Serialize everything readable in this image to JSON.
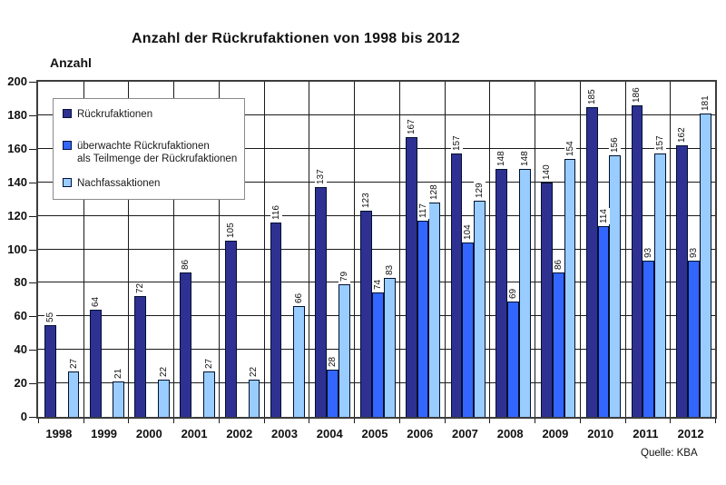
{
  "title": "Anzahl der Rückrufaktionen von 1998 bis 2012",
  "y_axis_title": "Anzahl",
  "source": "Quelle: KBA",
  "colors": {
    "recall": "#2E3192",
    "monitored": "#3366FF",
    "followup": "#99CCFF",
    "grid": "#1a1a1a",
    "frame": "#3c3c3c"
  },
  "legend": {
    "items": [
      {
        "label_lines": [
          "Rückrufaktionen"
        ],
        "color": "#2E3192"
      },
      {
        "label_lines": [
          "überwachte Rückrufaktionen",
          "als Teilmenge der Rückrufaktionen"
        ],
        "color": "#3366FF"
      },
      {
        "label_lines": [
          "Nachfassaktionen"
        ],
        "color": "#99CCFF"
      }
    ]
  },
  "chart_data": {
    "type": "bar",
    "title": "Anzahl der Rückrufaktionen von 1998 bis 2012",
    "xlabel": "",
    "ylabel": "Anzahl",
    "ylim": [
      0,
      200
    ],
    "ytick_step": 20,
    "grid": true,
    "legend_position": "upper-left-inside",
    "categories": [
      "1998",
      "1999",
      "2000",
      "2001",
      "2002",
      "2003",
      "2004",
      "2005",
      "2006",
      "2007",
      "2008",
      "2009",
      "2010",
      "2011",
      "2012"
    ],
    "series": [
      {
        "name": "Rückrufaktionen",
        "color": "#2E3192",
        "values": [
          55,
          64,
          72,
          86,
          105,
          116,
          137,
          123,
          167,
          157,
          148,
          140,
          185,
          186,
          162
        ]
      },
      {
        "name": "überwachte Rückrufaktionen als Teilmenge der Rückrufaktionen",
        "color": "#3366FF",
        "values": [
          null,
          null,
          null,
          null,
          null,
          null,
          28,
          74,
          117,
          104,
          69,
          86,
          114,
          93,
          93
        ]
      },
      {
        "name": "Nachfassaktionen",
        "color": "#99CCFF",
        "values": [
          27,
          21,
          22,
          27,
          22,
          66,
          79,
          83,
          128,
          129,
          148,
          154,
          156,
          157,
          181
        ]
      }
    ]
  }
}
